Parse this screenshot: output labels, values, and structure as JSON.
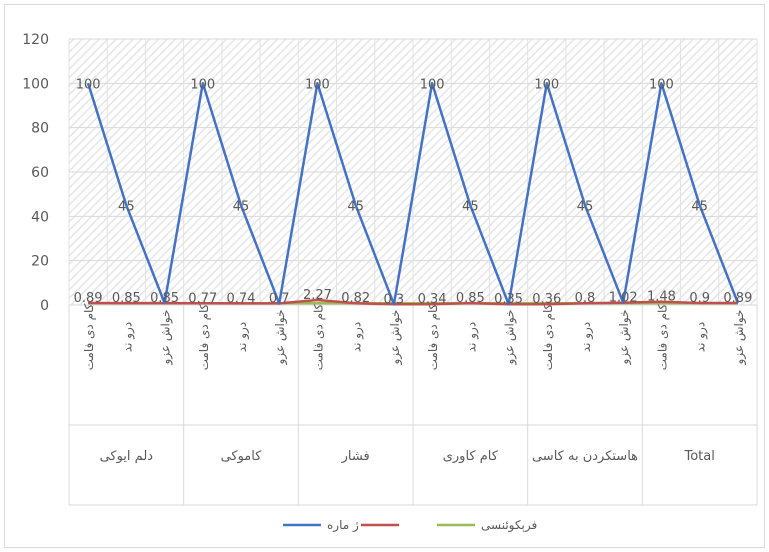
{
  "chart_data": {
    "type": "line",
    "title": "",
    "xlabel": "",
    "ylabel": "",
    "ylim": [
      0,
      120
    ],
    "yticks": [
      0,
      20,
      40,
      60,
      80,
      100,
      120
    ],
    "grid": true,
    "legend": "bottom",
    "groups": [
      "دلم ایوکی",
      "کاموکی",
      "فشار",
      "کام کاوری",
      "هاستکردن به کاسی",
      "Total"
    ],
    "sub_categories": [
      "کام دی فامت",
      "درو ند",
      "خواش عزو"
    ],
    "series": [
      {
        "name": "ژ ماره",
        "color": "#4472c4",
        "values": [
          100,
          45,
          0.89,
          100,
          45,
          0.7,
          100,
          45,
          0.3,
          100,
          45,
          0.35,
          100,
          45,
          1.02,
          100,
          45,
          0.89
        ],
        "labels": [
          "100",
          "45",
          "0.89",
          "100",
          "45",
          "0.7",
          "100",
          "45",
          "0.3",
          "100",
          "45",
          "0.35",
          "100",
          "45",
          "1.02",
          "100",
          "45",
          "0.89"
        ]
      },
      {
        "name": "",
        "color": "#c0504d",
        "values": [
          0.89,
          0.85,
          0.85,
          0.77,
          0.74,
          0.7,
          2.27,
          0.82,
          0.3,
          0.34,
          0.85,
          0.35,
          0.36,
          0.8,
          1.02,
          1.48,
          0.9,
          0.89
        ],
        "labels": [
          "0.89",
          "0.85",
          "0.85",
          "0.77",
          "0.74",
          "0.7",
          "2.27",
          "0.82",
          "0.3",
          "0.34",
          "0.85",
          "0.35",
          "0.36",
          "0.8",
          "1.02",
          "1.48",
          "0.9",
          "0.89"
        ]
      },
      {
        "name": "فرېکوئنسی",
        "color": "#9bbb59",
        "values": [
          0.8,
          0.8,
          0.8,
          0.8,
          0.8,
          0.8,
          0.8,
          0.8,
          0.8,
          0.8,
          0.8,
          0.8,
          0.8,
          0.8,
          0.8,
          0.8,
          0.8,
          0.8
        ]
      }
    ]
  }
}
